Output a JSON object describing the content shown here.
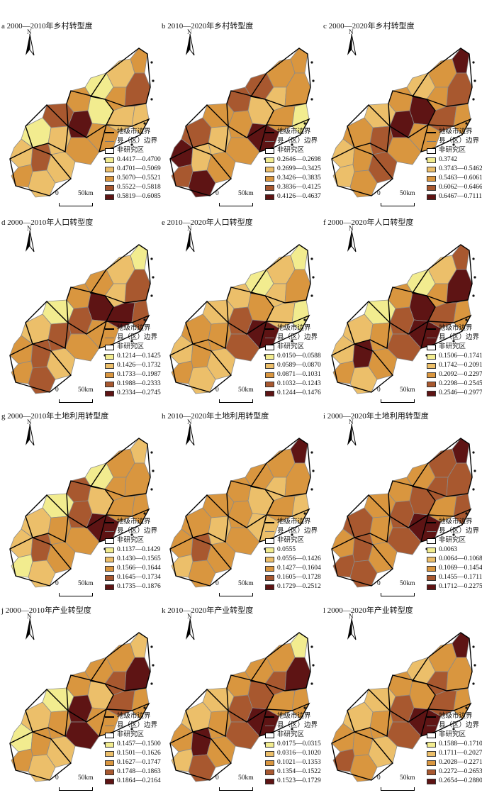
{
  "colors": {
    "class1": "#f2ec8f",
    "class2": "#ecbf6a",
    "class3": "#d9963f",
    "class4": "#a8582f",
    "class5": "#5e1414",
    "city_border": "#000000",
    "county_border": "#8a8a8a"
  },
  "legend_common": {
    "city_border": "地级市边界",
    "county_border": "县（区）边界",
    "non_study": "非研究区"
  },
  "scale": {
    "zero": "0",
    "dist": "50km"
  },
  "north_label": "N",
  "panels": [
    {
      "id": "a",
      "title": "a 2000—2010年乡村转型度",
      "classes": [
        "0.4417—0.4700",
        "0.4701—0.5069",
        "0.5070—0.5521",
        "0.5522—0.5818",
        "0.5819—0.6085"
      ],
      "regions": [
        2,
        3,
        1,
        3,
        4,
        3,
        1,
        2,
        2,
        4,
        5,
        3,
        1,
        2,
        3,
        2,
        4,
        2,
        3,
        2
      ]
    },
    {
      "id": "b",
      "title": "b 2010—2020年乡村转型度",
      "classes": [
        "0.2646—0.2698",
        "0.2699—0.3425",
        "0.3426—0.3835",
        "0.3836—0.4125",
        "0.4126—0.4637"
      ],
      "regions": [
        3,
        3,
        4,
        2,
        3,
        4,
        2,
        3,
        1,
        3,
        3,
        5,
        4,
        2,
        3,
        5,
        2,
        3,
        4,
        5
      ]
    },
    {
      "id": "c",
      "title": "c 2000—2020年乡村转型度",
      "classes": [
        "0.3742",
        "0.3743—0.5462",
        "0.5463—0.6061",
        "0.6062—0.6466",
        "0.6467—0.7111"
      ],
      "regions": [
        3,
        5,
        2,
        3,
        4,
        3,
        5,
        4,
        3,
        2,
        5,
        3,
        3,
        4,
        3,
        2,
        3,
        4,
        2,
        3
      ]
    },
    {
      "id": "d",
      "title": "d 2000—2010年人口转型度",
      "classes": [
        "0.1214—0.1425",
        "0.1426—0.1732",
        "0.1733—0.1987",
        "0.1988—0.2333",
        "0.2334—0.2745"
      ],
      "regions": [
        2,
        1,
        3,
        2,
        4,
        3,
        5,
        5,
        4,
        1,
        4,
        3,
        2,
        4,
        3,
        3,
        4,
        2,
        3,
        4
      ]
    },
    {
      "id": "e",
      "title": "e 2010—2020年人口转型度",
      "classes": [
        "0.0150—0.0588",
        "0.0589—0.0870",
        "0.0871—0.1031",
        "0.1032—0.1243",
        "0.1244—0.1476"
      ],
      "regions": [
        2,
        1,
        1,
        2,
        3,
        2,
        3,
        2,
        1,
        2,
        4,
        5,
        3,
        3,
        4,
        2,
        3,
        2,
        3,
        2
      ]
    },
    {
      "id": "f",
      "title": "f 2000—2020年人口转型度",
      "classes": [
        "0.1506—0.1741",
        "0.1742—0.2091",
        "0.2092—0.2297",
        "0.2298—0.2545",
        "0.2546—0.2977"
      ],
      "regions": [
        2,
        4,
        1,
        3,
        5,
        3,
        5,
        4,
        3,
        1,
        4,
        5,
        2,
        3,
        4,
        2,
        5,
        3,
        3,
        2
      ]
    },
    {
      "id": "g",
      "title": "g 2000—2010年土地利用转型度",
      "classes": [
        "0.1137—0.1429",
        "0.1430—0.1565",
        "0.1566—0.1644",
        "0.1645—0.1734",
        "0.1735—0.1876"
      ],
      "regions": [
        3,
        2,
        1,
        3,
        3,
        4,
        2,
        3,
        3,
        1,
        4,
        5,
        2,
        3,
        3,
        2,
        4,
        3,
        1,
        2
      ]
    },
    {
      "id": "h",
      "title": "h 2010—2020年土地利用转型度",
      "classes": [
        "0.0555",
        "0.0556—0.1426",
        "0.1427—0.1604",
        "0.1605—0.1728",
        "0.1729—0.2512"
      ],
      "regions": [
        3,
        5,
        3,
        2,
        3,
        3,
        2,
        3,
        2,
        3,
        3,
        2,
        3,
        2,
        3,
        3,
        4,
        3,
        2,
        3
      ]
    },
    {
      "id": "i",
      "title": "i 2000—2020年土地利用转型度",
      "classes": [
        "0.0063",
        "0.0064—0.1068",
        "0.1069—0.1454",
        "0.1455—0.1711",
        "0.1712—0.2275"
      ],
      "regions": [
        4,
        5,
        3,
        4,
        4,
        3,
        4,
        3,
        4,
        3,
        4,
        5,
        4,
        3,
        4,
        3,
        4,
        3,
        4,
        4
      ]
    },
    {
      "id": "j",
      "title": "j 2000—2010年产业转型度",
      "classes": [
        "0.1457—0.1500",
        "0.1501—0.1626",
        "0.1627—0.1747",
        "0.1748—0.1863",
        "0.1864—0.2164"
      ],
      "regions": [
        3,
        2,
        3,
        4,
        5,
        3,
        2,
        4,
        3,
        1,
        5,
        3,
        2,
        3,
        5,
        1,
        3,
        2,
        3,
        2
      ]
    },
    {
      "id": "k",
      "title": "k 2010—2020年产业转型度",
      "classes": [
        "0.0175—0.0315",
        "0.0316—0.1020",
        "0.1021—0.1353",
        "0.1354—0.1522",
        "0.1523—0.1729"
      ],
      "regions": [
        3,
        1,
        3,
        4,
        5,
        3,
        4,
        3,
        3,
        2,
        4,
        5,
        2,
        3,
        4,
        3,
        5,
        3,
        2,
        4
      ]
    },
    {
      "id": "l",
      "title": "l 2000—2020年产业转型度",
      "classes": [
        "0.1588—0.1710",
        "0.1711—0.2027",
        "0.2028—0.2271",
        "0.2272—0.2653",
        "0.2654—0.2880"
      ],
      "regions": [
        3,
        5,
        2,
        4,
        3,
        3,
        3,
        4,
        3,
        2,
        4,
        5,
        2,
        3,
        4,
        3,
        3,
        2,
        4,
        3
      ]
    }
  ]
}
